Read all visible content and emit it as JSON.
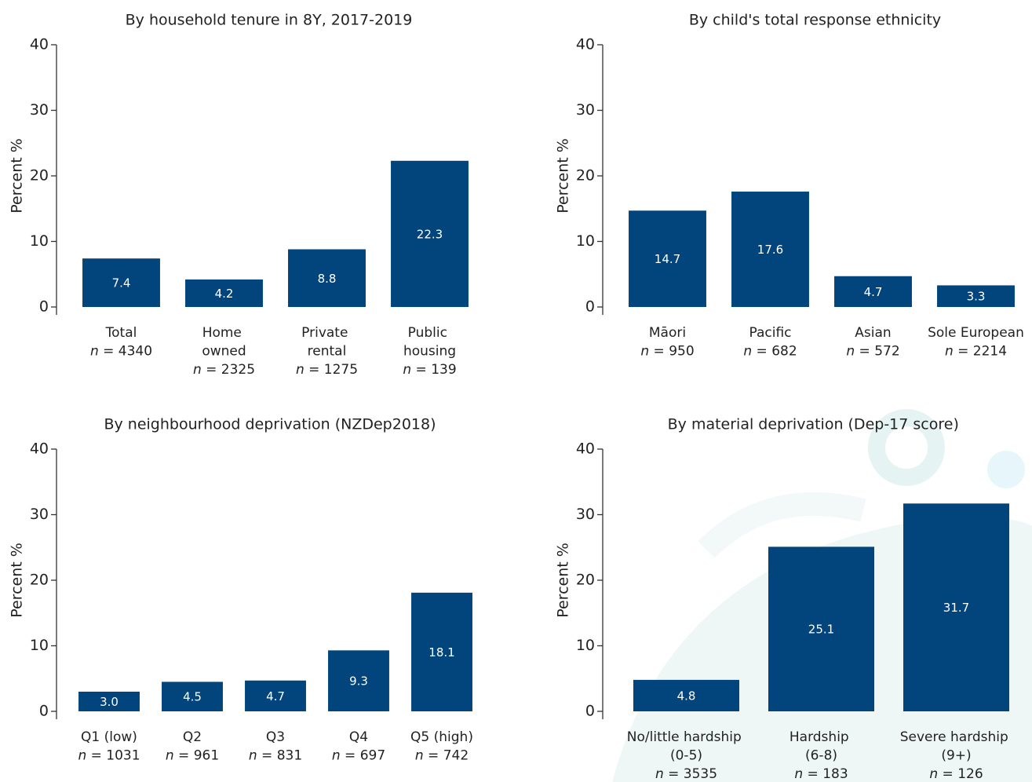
{
  "chart_data": [
    {
      "type": "bar",
      "title": "By household tenure in 8Y, 2017-2019",
      "y_label": "Percent %",
      "categories": [
        "Total",
        "Home\nowned",
        "Private\nrental",
        "Public\nhousing"
      ],
      "sample_sizes": [
        "n = 4340",
        "n = 2325",
        "n = 1275",
        "n = 139"
      ],
      "values": [
        7.4,
        4.2,
        8.8,
        22.3
      ],
      "color": "#02447c",
      "ylim": [
        0,
        40
      ],
      "yticks": [
        0,
        10,
        20,
        30,
        40
      ],
      "grid": false
    },
    {
      "type": "bar",
      "title": "By child's total response ethnicity",
      "y_label": "Percent %",
      "categories": [
        "Māori",
        "Pacific",
        "Asian",
        "Sole European"
      ],
      "sample_sizes": [
        "n = 950",
        "n = 682",
        "n = 572",
        "n = 2214"
      ],
      "values": [
        14.7,
        17.6,
        4.7,
        3.3
      ],
      "color": "#02447c",
      "ylim": [
        0,
        40
      ],
      "yticks": [
        0,
        10,
        20,
        30,
        40
      ],
      "grid": false
    },
    {
      "type": "bar",
      "title": "By neighbourhood deprivation (NZDep2018)",
      "y_label": "Percent %",
      "categories": [
        "Q1 (low)",
        "Q2",
        "Q3",
        "Q4",
        "Q5 (high)"
      ],
      "sample_sizes": [
        "n = 1031",
        "n = 961",
        "n = 831",
        "n = 697",
        "n = 742"
      ],
      "values": [
        3.0,
        4.5,
        4.7,
        9.3,
        18.1
      ],
      "value_labels": [
        "3.0",
        "4.5",
        "4.7",
        "9.3",
        "18.1"
      ],
      "color": "#02447c",
      "ylim": [
        0,
        40
      ],
      "yticks": [
        0,
        10,
        20,
        30,
        40
      ],
      "grid": false
    },
    {
      "type": "bar",
      "title": "By material deprivation (Dep-17 score)",
      "y_label": "Percent %",
      "categories": [
        "No/little hardship\n(0-5)",
        "Hardship\n(6-8)",
        "Severe hardship\n(9+)"
      ],
      "sample_sizes": [
        "n = 3535",
        "n = 183",
        "n = 126"
      ],
      "values": [
        4.8,
        25.1,
        31.7
      ],
      "color": "#02447c",
      "ylim": [
        0,
        40
      ],
      "yticks": [
        0,
        10,
        20,
        30,
        40
      ],
      "grid": false
    }
  ]
}
